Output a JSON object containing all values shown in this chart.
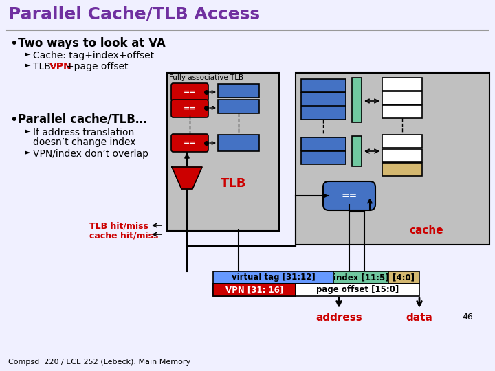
{
  "title": "Parallel Cache/TLB Access",
  "title_color": "#7030A0",
  "bg_color": "#F0F0FF",
  "bullet1": "Two ways to look at VA",
  "sub1a": "Cache: tag+index+offset",
  "sub1b_prefix": "TLB: ",
  "sub1b_vpn": "VPN",
  "sub1b_suffix": "+page offset",
  "bullet2": "Parallel cache/TLB…",
  "sub2a1": "If address translation",
  "sub2a2": "doesn’t change index",
  "sub2b": "VPN/index don’t overlap",
  "tlb_label": "TLB",
  "cache_label": "cache",
  "fully_assoc_label": "Fully associative TLB",
  "addr_label": "address",
  "data_label": "data",
  "tlb_hitmiss": "TLB hit/miss",
  "cache_hitmiss": "cache hit/miss",
  "red_color": "#CC0000",
  "blue_color": "#4472C4",
  "teal_color": "#70C8A0",
  "tan_color": "#D4B870",
  "gray_bg": "#C0C0C0",
  "slide_num": "46",
  "footer": "Compsd  220 / ECE 252 (Lebeck): Main Memory",
  "vt_color": "#6699FF",
  "index_color": "#70C8A0",
  "offset_color": "#D4B870",
  "vpn_color": "#CC0000",
  "po_color": "#FFFFFF",
  "white": "#FFFFFF",
  "black": "#000000"
}
